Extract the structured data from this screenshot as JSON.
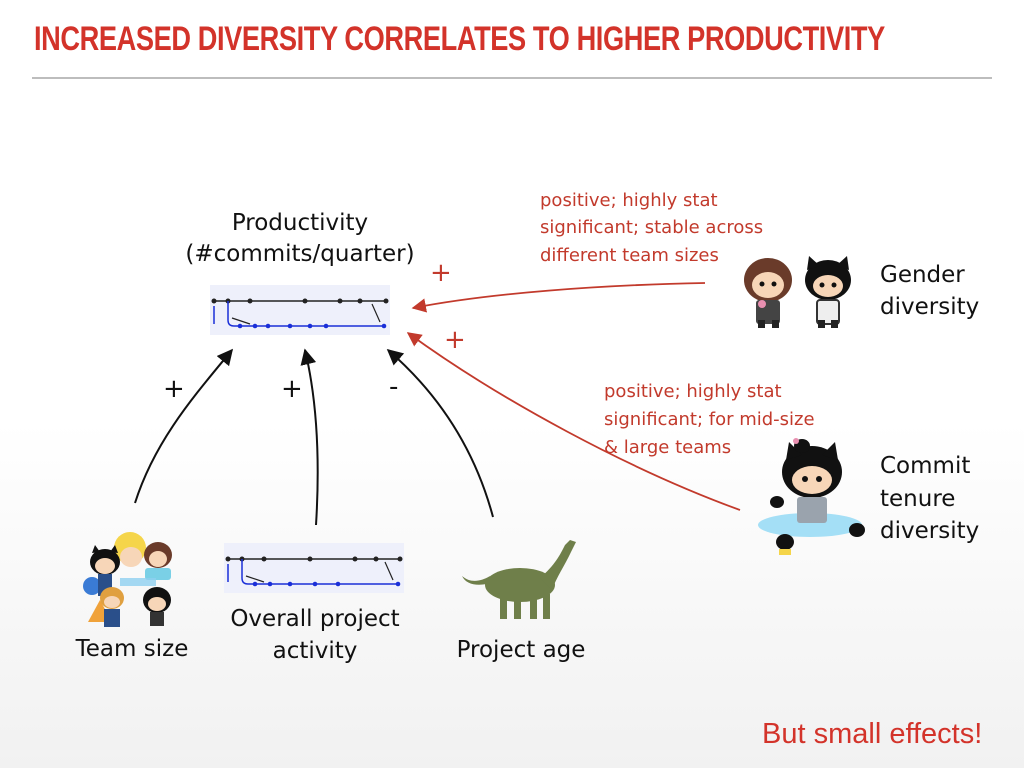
{
  "slide": {
    "title": "INCREASED DIVERSITY CORRELATES TO HIGHER PRODUCTIVITY",
    "footer": "But small effects!"
  },
  "productivity": {
    "label": "Productivity",
    "sublabel": "(#commits/quarter)"
  },
  "factors": {
    "team_size": {
      "label": "Team size",
      "sign": "+"
    },
    "overall_activity": {
      "label_line1": "Overall project",
      "label_line2": "activity",
      "sign": "+"
    },
    "project_age": {
      "label": "Project age",
      "sign": "-"
    },
    "gender_diversity": {
      "label_line1": "Gender",
      "label_line2": "diversity",
      "sign": "+",
      "note_line1": "positive; highly stat",
      "note_line2": "significant; stable across",
      "note_line3": "different team sizes"
    },
    "tenure_diversity": {
      "label_line1": "Commit",
      "label_line2": "tenure",
      "label_line3": "diversity",
      "sign": "+",
      "note_line1": "positive; highly stat",
      "note_line2": "significant; for mid-size",
      "note_line3": "& large teams"
    }
  },
  "colors": {
    "title": "#d3332a",
    "positive_note": "#c23a2c",
    "arrow_black": "#111111",
    "commit_graph": "#1a2fd8"
  }
}
